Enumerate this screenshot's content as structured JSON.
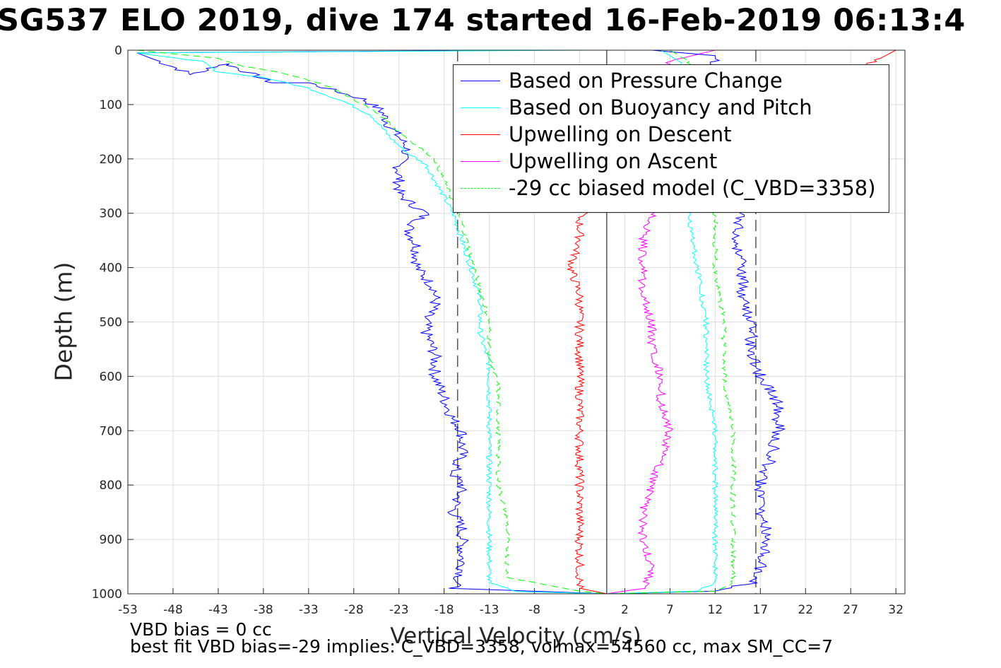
{
  "title": "SG537 ELO 2019, dive 174 started 16-Feb-2019 06:13:4",
  "footer": {
    "line1": "VBD bias = 0 cc",
    "line2": "best fit VBD bias=-29 implies: C_VBD=3358, volmax=54560 cc, max SM_CC=7"
  },
  "chart_data": {
    "type": "line",
    "xlabel": "Vertical Velocity (cm/s)",
    "ylabel": "Depth (m)",
    "xlim": [
      -53,
      33
    ],
    "ylim": [
      1000,
      0
    ],
    "y_reversed": true,
    "xticks": [
      -53,
      -48,
      -43,
      -38,
      -33,
      -28,
      -23,
      -18,
      -13,
      -8,
      -3,
      2,
      7,
      12,
      17,
      22,
      27,
      32
    ],
    "yticks": [
      0,
      100,
      200,
      300,
      400,
      500,
      600,
      700,
      800,
      900,
      1000
    ],
    "grid": true,
    "legend_position": "top-right",
    "reference_lines": {
      "zero_line": 0,
      "dashed_lines": [
        -16.5,
        16.5
      ]
    },
    "series": [
      {
        "name": "Based on Pressure Change",
        "color": "#0000ff",
        "style": "solid",
        "points": [
          [
            -8,
            0
          ],
          [
            -52,
            5
          ],
          [
            -48,
            30
          ],
          [
            -46,
            45
          ],
          [
            -42,
            25
          ],
          [
            -37,
            60
          ],
          [
            -33,
            60
          ],
          [
            -30,
            75
          ],
          [
            -27,
            90
          ],
          [
            -25,
            110
          ],
          [
            -24,
            140
          ],
          [
            -22,
            180
          ],
          [
            -23,
            210
          ],
          [
            -23,
            240
          ],
          [
            -23,
            265
          ],
          [
            -21,
            290
          ],
          [
            -20,
            300
          ],
          [
            -22,
            330
          ],
          [
            -21,
            360
          ],
          [
            -21,
            400
          ],
          [
            -19,
            440
          ],
          [
            -19,
            470
          ],
          [
            -20,
            490
          ],
          [
            -20,
            520
          ],
          [
            -19,
            560
          ],
          [
            -19,
            600
          ],
          [
            -18,
            640
          ],
          [
            -17,
            680
          ],
          [
            -16,
            700
          ],
          [
            -16,
            740
          ],
          [
            -17,
            780
          ],
          [
            -16,
            800
          ],
          [
            -17,
            850
          ],
          [
            -16,
            880
          ],
          [
            -16,
            920
          ],
          [
            -16,
            960
          ],
          [
            -17,
            990
          ],
          [
            -5,
            997
          ],
          [
            0,
            1000
          ]
        ]
      },
      {
        "name": "Based on Buoyancy and Pitch",
        "color": "#00ffff",
        "style": "solid",
        "points": [
          [
            -2,
            0
          ],
          [
            -52,
            5
          ],
          [
            -45,
            20
          ],
          [
            -43,
            40
          ],
          [
            -38,
            50
          ],
          [
            -33,
            70
          ],
          [
            -29,
            95
          ],
          [
            -26,
            120
          ],
          [
            -24,
            160
          ],
          [
            -22,
            190
          ],
          [
            -20,
            210
          ],
          [
            -19,
            240
          ],
          [
            -18,
            270
          ],
          [
            -17,
            300
          ],
          [
            -16,
            350
          ],
          [
            -15,
            400
          ],
          [
            -14,
            460
          ],
          [
            -14,
            520
          ],
          [
            -13,
            580
          ],
          [
            -13,
            640
          ],
          [
            -13,
            700
          ],
          [
            -13,
            760
          ],
          [
            -13,
            820
          ],
          [
            -13,
            880
          ],
          [
            -13,
            940
          ],
          [
            -13,
            980
          ],
          [
            -10,
            996
          ],
          [
            0,
            1000
          ]
        ]
      },
      {
        "name": "Upwelling on Descent",
        "color": "#ff0000",
        "style": "solid",
        "points": [
          [
            32,
            0
          ],
          [
            -3,
            305
          ],
          [
            -3,
            350
          ],
          [
            -4,
            400
          ],
          [
            -3,
            450
          ],
          [
            -3,
            500
          ],
          [
            -3,
            550
          ],
          [
            -3,
            600
          ],
          [
            -3,
            650
          ],
          [
            -3,
            700
          ],
          [
            -3,
            750
          ],
          [
            -3,
            800
          ],
          [
            -3,
            850
          ],
          [
            -3,
            900
          ],
          [
            -3,
            950
          ],
          [
            -3,
            990
          ],
          [
            0,
            1000
          ]
        ]
      },
      {
        "name": "Upwelling on Ascent",
        "color": "#ff00ff",
        "style": "solid",
        "points": [
          [
            0,
            1000
          ],
          [
            4,
            990
          ],
          [
            5,
            950
          ],
          [
            4,
            900
          ],
          [
            4,
            850
          ],
          [
            5,
            800
          ],
          [
            6,
            750
          ],
          [
            7,
            700
          ],
          [
            6,
            650
          ],
          [
            6,
            600
          ],
          [
            5,
            550
          ],
          [
            5,
            500
          ],
          [
            4,
            450
          ],
          [
            4,
            400
          ],
          [
            4,
            350
          ],
          [
            5,
            305
          ],
          [
            7,
            20
          ],
          [
            12,
            0
          ]
        ]
      },
      {
        "name": "-29 cc biased model (C_VBD=3358)",
        "color": "#00ff00",
        "style": "dashed",
        "points": [
          [
            -52,
            0
          ],
          [
            -43,
            15
          ],
          [
            -40,
            30
          ],
          [
            -35,
            45
          ],
          [
            -31,
            65
          ],
          [
            -28,
            90
          ],
          [
            -25,
            120
          ],
          [
            -23,
            150
          ],
          [
            -21,
            175
          ],
          [
            -19,
            200
          ],
          [
            -18,
            240
          ],
          [
            -17,
            280
          ],
          [
            -16,
            320
          ],
          [
            -15,
            380
          ],
          [
            -14,
            440
          ],
          [
            -13,
            500
          ],
          [
            -13,
            560
          ],
          [
            -12,
            620
          ],
          [
            -12,
            680
          ],
          [
            -12,
            740
          ],
          [
            -12,
            800
          ],
          [
            -11,
            860
          ],
          [
            -11,
            920
          ],
          [
            -11,
            970
          ],
          [
            -3,
            995
          ],
          [
            0,
            1000
          ]
        ]
      }
    ],
    "series_right": [
      {
        "name": "Based on Pressure Change",
        "color": "#0000ff",
        "points": [
          [
            0,
            1000
          ],
          [
            12,
            995
          ],
          [
            16,
            980
          ],
          [
            17,
            950
          ],
          [
            18,
            900
          ],
          [
            17,
            850
          ],
          [
            17,
            800
          ],
          [
            18,
            760
          ],
          [
            19,
            700
          ],
          [
            19,
            650
          ],
          [
            17,
            600
          ],
          [
            16,
            550
          ],
          [
            16,
            500
          ],
          [
            15,
            450
          ],
          [
            15,
            400
          ],
          [
            14,
            350
          ],
          [
            15,
            300
          ],
          [
            12,
            10
          ],
          [
            5,
            0
          ]
        ]
      },
      {
        "name": "Based on Buoyancy and Pitch",
        "color": "#00ffff",
        "points": [
          [
            0,
            1000
          ],
          [
            10,
            995
          ],
          [
            12,
            980
          ],
          [
            12,
            900
          ],
          [
            12,
            800
          ],
          [
            12,
            700
          ],
          [
            11,
            600
          ],
          [
            11,
            500
          ],
          [
            10,
            400
          ],
          [
            9,
            300
          ],
          [
            9,
            200
          ],
          [
            9,
            100
          ],
          [
            8,
            20
          ],
          [
            6,
            0
          ]
        ]
      },
      {
        "name": "-29 cc biased model (C_VBD=3358)",
        "color": "#00ff00",
        "points": [
          [
            0,
            1000
          ],
          [
            12,
            995
          ],
          [
            14,
            980
          ],
          [
            14,
            900
          ],
          [
            14,
            800
          ],
          [
            14,
            700
          ],
          [
            13,
            600
          ],
          [
            13,
            500
          ],
          [
            12,
            400
          ],
          [
            12,
            300
          ],
          [
            11,
            200
          ],
          [
            11,
            100
          ],
          [
            9,
            20
          ],
          [
            7,
            0
          ]
        ]
      }
    ]
  }
}
